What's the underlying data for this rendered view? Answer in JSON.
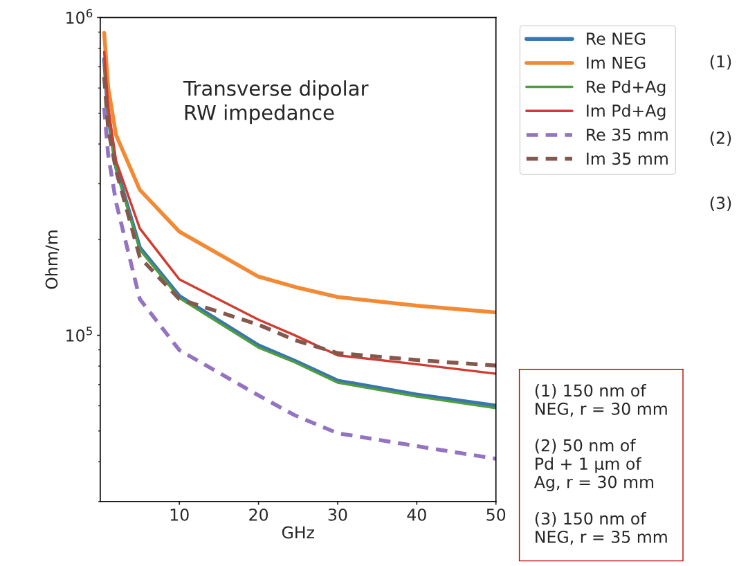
{
  "chart_data": {
    "type": "line",
    "xlabel": "GHz",
    "ylabel": "Ohm/m",
    "log": "y",
    "x": [
      0.5,
      1,
      2,
      5,
      10,
      20,
      24.6,
      30,
      40,
      50
    ],
    "series": [
      {
        "name": "Re NEG",
        "color": "#3a75b0",
        "line_style": "solid",
        "values": [
          740000,
          490000,
          338000,
          189000,
          133000,
          93000,
          83100,
          72000,
          65100,
          60100
        ]
      },
      {
        "name": "Im NEG",
        "color": "#f28a35",
        "line_style": "solid",
        "values": [
          895000,
          603000,
          427000,
          287000,
          212000,
          153000,
          142000,
          132000,
          124000,
          118000
        ]
      },
      {
        "name": "Re Pd+Ag",
        "color": "#4e9e3e",
        "line_style": "solid",
        "values": [
          735000,
          487000,
          333000,
          186000,
          131000,
          91500,
          82200,
          71000,
          64200,
          59000
        ]
      },
      {
        "name": "Im Pd+Ag",
        "color": "#d03b32",
        "line_style": "solid",
        "values": [
          780000,
          525000,
          354000,
          217000,
          150000,
          112000,
          100000,
          86500,
          81100,
          75700
        ]
      },
      {
        "name": "Re 35 mm",
        "color": "#9473c0",
        "line_style": "dashed",
        "values": [
          520000,
          370000,
          262000,
          130000,
          89800,
          64700,
          56000,
          49200,
          44800,
          40900
        ]
      },
      {
        "name": "Im 35 mm",
        "color": "#85584e",
        "line_style": "dashed",
        "values": [
          650000,
          447000,
          330000,
          176000,
          130000,
          108000,
          96600,
          87900,
          83600,
          80300
        ]
      }
    ],
    "xlim": [
      0,
      50
    ],
    "ylim": [
      30000,
      1000000
    ],
    "xticks": [
      10,
      20,
      30,
      40,
      50
    ],
    "yticks": [
      {
        "value": 100000,
        "label": "10$^{5}$"
      },
      {
        "value": 1000000,
        "label": "10$^{6}$"
      }
    ],
    "legend": "top right",
    "grid": false,
    "annotations": [
      "Transverse dipolar\nRW impedance",
      "(1)",
      "(2)",
      "(3)",
      "(1) 150 nm of\nNEG, r = 30 mm\n\n(2) 50 nm of\nPd + 1 μm of\nAg, r = 30 mm\n\n(3) 150 nm of\nNEG, r = 35 mm"
    ]
  }
}
